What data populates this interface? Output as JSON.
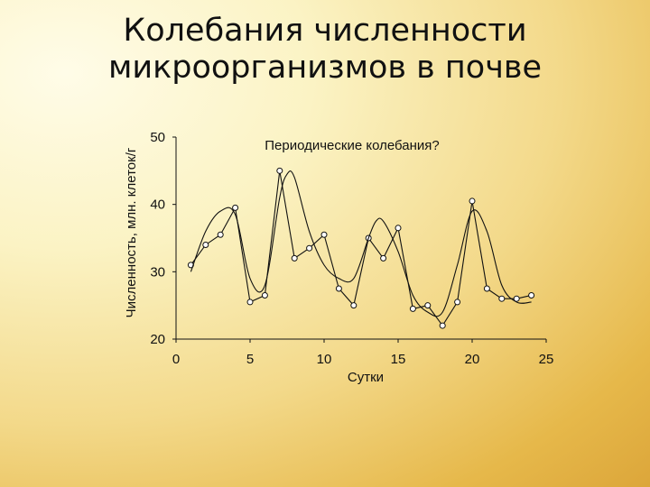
{
  "slide": {
    "title_line1": "Колебания численности",
    "title_line2": "микроорганизмов в почве"
  },
  "chart_data": {
    "type": "line",
    "title": "",
    "annotation": "Периодические колебания?",
    "xlabel": "Сутки",
    "ylabel": "Численность, млн. клеток/г",
    "xlim": [
      0,
      25
    ],
    "ylim": [
      20,
      50
    ],
    "x_ticks": [
      "0",
      "5",
      "10",
      "15",
      "20",
      "25"
    ],
    "y_ticks": [
      "20",
      "30",
      "40",
      "50"
    ],
    "grid": false,
    "legend": "none",
    "series": [
      {
        "marker": "circle",
        "x": [
          1,
          2,
          3,
          4,
          5,
          6,
          7,
          8,
          9,
          10,
          11,
          12,
          13,
          14,
          15,
          16,
          17,
          18,
          19,
          20,
          21,
          22,
          23,
          24
        ],
        "y": [
          31,
          34,
          35.5,
          39.5,
          25.5,
          26.5,
          45,
          32,
          33.5,
          35.5,
          27.5,
          25,
          35,
          32,
          36.5,
          24.5,
          25,
          22,
          25.5,
          40.5,
          27.5,
          26,
          26,
          26.5
        ]
      },
      {
        "marker": "none",
        "x": [
          1,
          2,
          3,
          4,
          5,
          6,
          7,
          7.5,
          8,
          9,
          10,
          11,
          12,
          13,
          13.5,
          14,
          15,
          16,
          17,
          18,
          19,
          20,
          21,
          22,
          23,
          24
        ],
        "y": [
          30,
          36,
          39,
          38.5,
          29,
          28,
          41,
          44.5,
          44,
          36,
          31,
          29,
          29,
          35,
          37.5,
          37.5,
          33,
          26.5,
          24,
          24,
          31,
          39,
          36,
          28,
          25.5,
          25.5
        ]
      }
    ],
    "colors": {
      "line": "#111111",
      "marker_fill": "#ffffff"
    }
  }
}
